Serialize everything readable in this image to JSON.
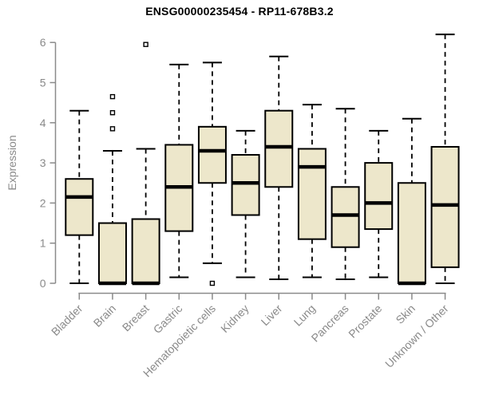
{
  "chart_data": {
    "type": "boxplot",
    "title": "ENSG00000235454 - RP11-678B3.2",
    "ylabel": "Expression",
    "xlabel": "",
    "ylim": [
      0,
      6.2
    ],
    "yticks": [
      0,
      1,
      2,
      3,
      4,
      5,
      6
    ],
    "grid": false,
    "legend": "none",
    "categories": [
      "Bladder",
      "Brain",
      "Breast",
      "Gastric",
      "Hematopoietic cells",
      "Kidney",
      "Liver",
      "Lung",
      "Pancreas",
      "Prostate",
      "Skin",
      "Unknown / Other"
    ],
    "series": [
      {
        "category": "Bladder",
        "whisker_low": 0,
        "q1": 1.2,
        "median": 2.15,
        "q3": 2.6,
        "whisker_high": 4.3,
        "outliers": []
      },
      {
        "category": "Brain",
        "whisker_low": 0,
        "q1": 0,
        "median": 0,
        "q3": 1.5,
        "whisker_high": 3.3,
        "outliers": [
          3.85,
          4.25,
          4.65
        ]
      },
      {
        "category": "Breast",
        "whisker_low": 0,
        "q1": 0,
        "median": 0,
        "q3": 1.6,
        "whisker_high": 3.35,
        "outliers": [
          5.95
        ]
      },
      {
        "category": "Gastric",
        "whisker_low": 0.15,
        "q1": 1.3,
        "median": 2.4,
        "q3": 3.45,
        "whisker_high": 5.45,
        "outliers": []
      },
      {
        "category": "Hematopoietic cells",
        "whisker_low": 0.5,
        "q1": 2.5,
        "median": 3.3,
        "q3": 3.9,
        "whisker_high": 5.5,
        "outliers": [
          0
        ]
      },
      {
        "category": "Kidney",
        "whisker_low": 0.15,
        "q1": 1.7,
        "median": 2.5,
        "q3": 3.2,
        "whisker_high": 3.8,
        "outliers": []
      },
      {
        "category": "Liver",
        "whisker_low": 0.1,
        "q1": 2.4,
        "median": 3.4,
        "q3": 4.3,
        "whisker_high": 5.65,
        "outliers": []
      },
      {
        "category": "Lung",
        "whisker_low": 0.15,
        "q1": 1.1,
        "median": 2.9,
        "q3": 3.35,
        "whisker_high": 4.45,
        "outliers": []
      },
      {
        "category": "Pancreas",
        "whisker_low": 0.1,
        "q1": 0.9,
        "median": 1.7,
        "q3": 2.4,
        "whisker_high": 4.35,
        "outliers": []
      },
      {
        "category": "Prostate",
        "whisker_low": 0.15,
        "q1": 1.35,
        "median": 2.0,
        "q3": 3.0,
        "whisker_high": 3.8,
        "outliers": []
      },
      {
        "category": "Skin",
        "whisker_low": 0,
        "q1": 0,
        "median": 0,
        "q3": 2.5,
        "whisker_high": 4.1,
        "outliers": []
      },
      {
        "category": "Unknown / Other",
        "whisker_low": 0,
        "q1": 0.4,
        "median": 1.95,
        "q3": 3.4,
        "whisker_high": 6.2,
        "outliers": []
      }
    ],
    "colors": {
      "box_fill": "#EDE7CB",
      "box_border": "#000000",
      "median": "#000000",
      "whisker": "#000000",
      "outlier": "#000000",
      "axis": "#8A8A8A",
      "tick_label": "#8A8A8A",
      "axis_label": "#8A8A8A",
      "title": "#000000",
      "background": "#FFFFFF"
    }
  }
}
